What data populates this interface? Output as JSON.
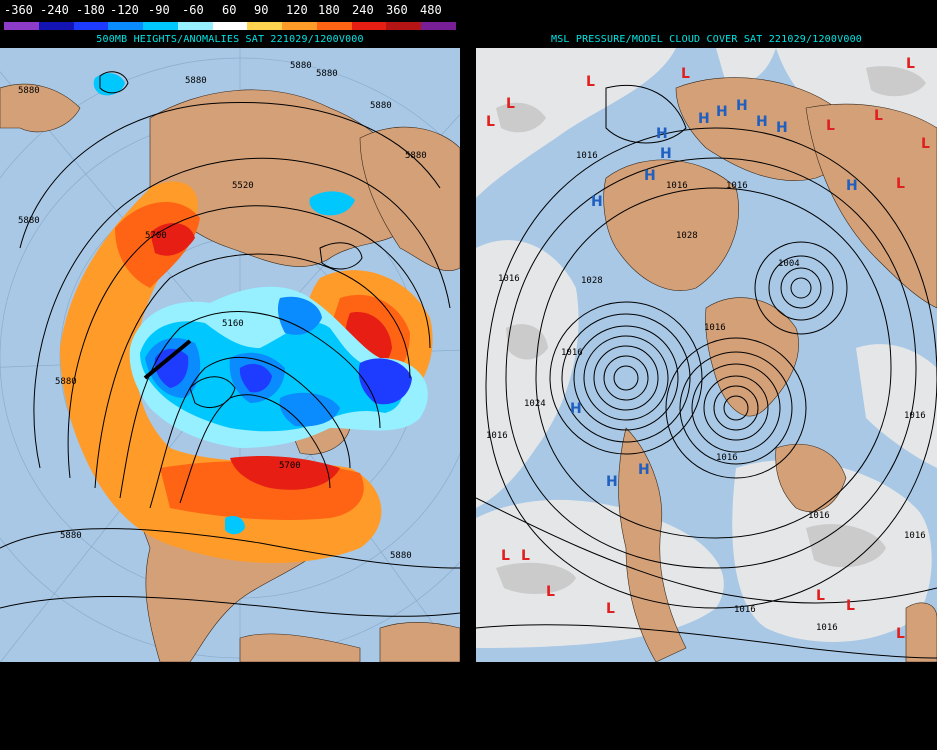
{
  "legend": {
    "ticks": [
      "-360",
      "-240",
      "-180",
      "-120",
      "-90",
      "-60",
      "60",
      "90",
      "120",
      "180",
      "240",
      "360",
      "480"
    ],
    "colors": [
      "#8c3cc8",
      "#1414b4",
      "#1e3cff",
      "#0a8cff",
      "#00c8ff",
      "#96f0ff",
      "#ffffff",
      "#ffd250",
      "#ff9b28",
      "#ff6414",
      "#e61e14",
      "#b41414",
      "#781e96"
    ]
  },
  "left_map": {
    "title": "500MB HEIGHTS/ANOMALIES SAT 221029/1200V000",
    "contour_labels": [
      "5880",
      "5880",
      "5880",
      "5880",
      "5880",
      "5880",
      "5520",
      "5700",
      "5160",
      "5880",
      "5880",
      "5700",
      "5880",
      "5880"
    ]
  },
  "right_map": {
    "title": "MSL PRESSURE/MODEL CLOUD COVER SAT 221029/1200V000",
    "isobar_labels": [
      "1016",
      "1016",
      "1016",
      "1028",
      "1016",
      "1028",
      "1016",
      "1004",
      "1016",
      "1016",
      "1024",
      "1016",
      "1016",
      "1016",
      "1016",
      "1016",
      "1016"
    ],
    "high_symbol": "H",
    "low_symbol": "L"
  },
  "colors": {
    "ocean": "#a8c8e6",
    "land": "#d4a078",
    "title_text": "#00e5e5",
    "high": "#1f5fbf",
    "low": "#e02020"
  }
}
